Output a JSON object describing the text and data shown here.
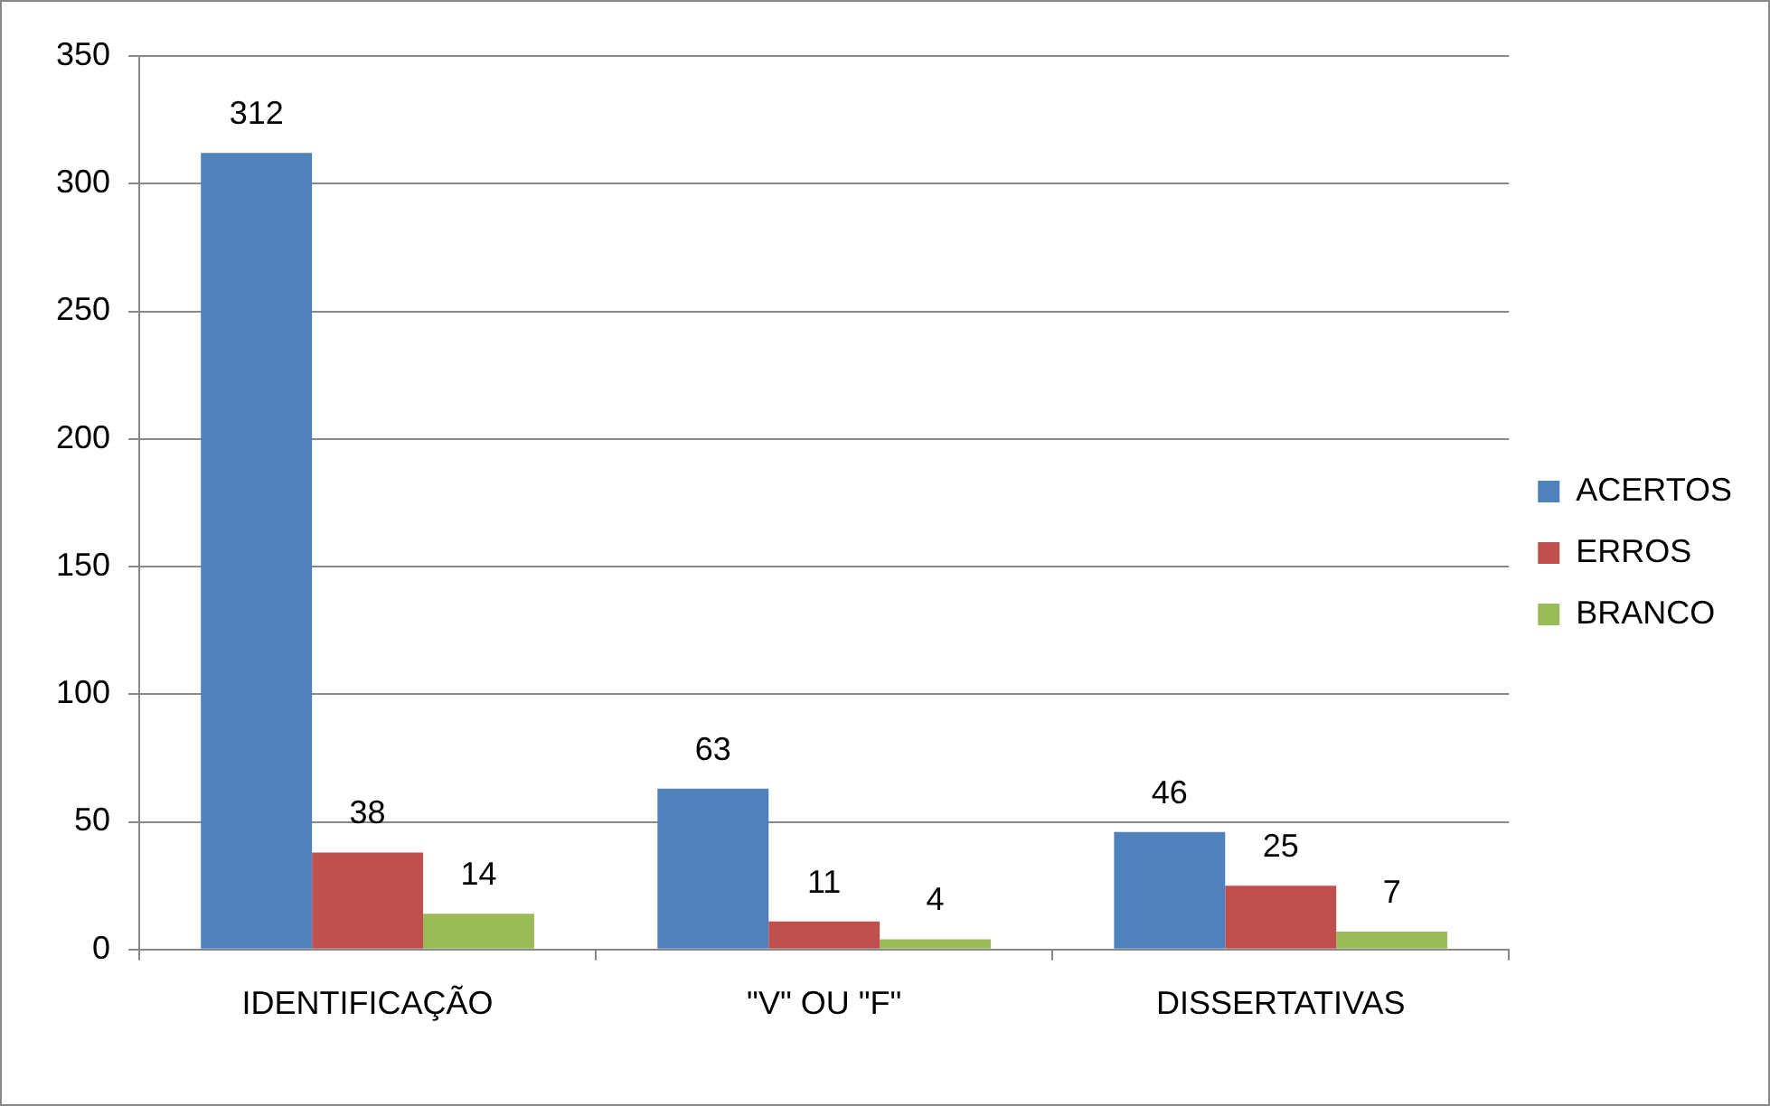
{
  "chart_data": {
    "type": "bar",
    "categories": [
      "IDENTIFICAÇÃO",
      "\"V\" OU \"F\"",
      "DISSERTATIVAS"
    ],
    "series": [
      {
        "name": "ACERTOS",
        "color": "#4f81bd",
        "values": [
          312,
          63,
          46
        ]
      },
      {
        "name": "ERROS",
        "color": "#c0504d",
        "values": [
          38,
          11,
          25
        ]
      },
      {
        "name": "BRANCO",
        "color": "#9bbb59",
        "values": [
          14,
          4,
          7
        ]
      }
    ],
    "ylim": [
      0,
      350
    ],
    "yticks": [
      0,
      50,
      100,
      150,
      200,
      250,
      300,
      350
    ],
    "grid": "y",
    "legend": "right",
    "data_labels": true
  }
}
